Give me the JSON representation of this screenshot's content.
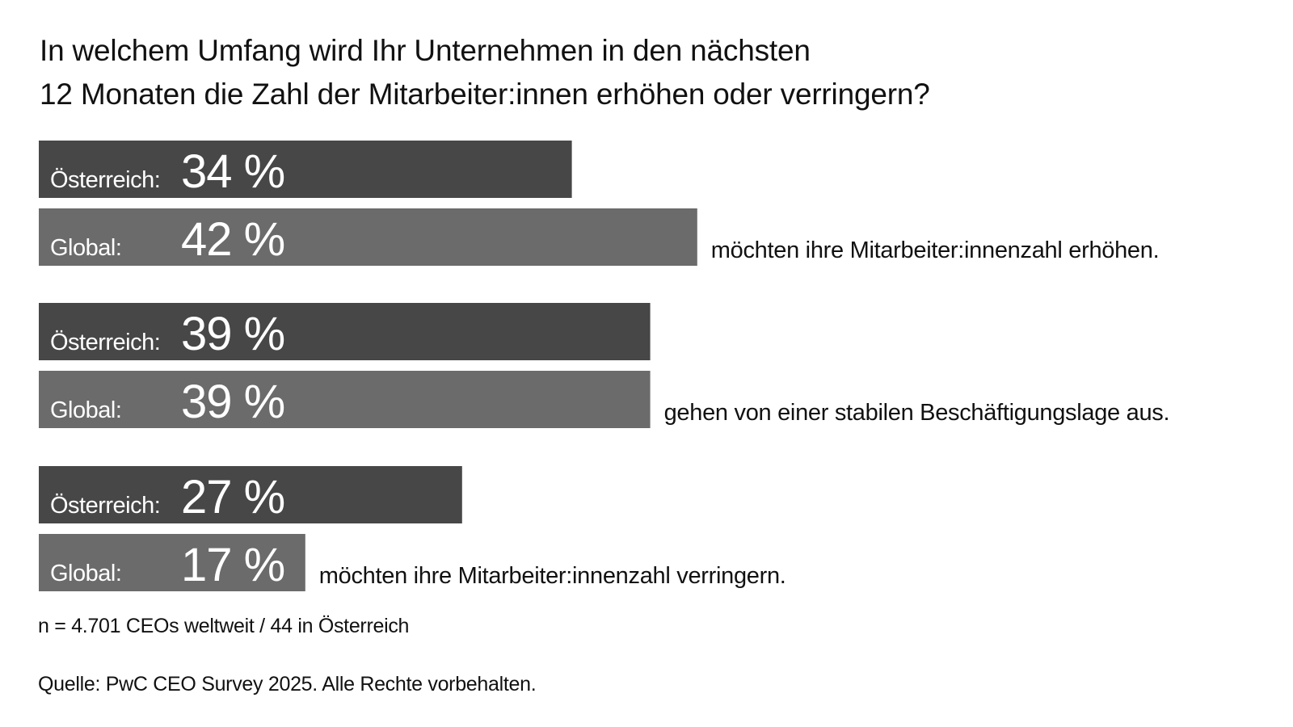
{
  "chart_data": {
    "type": "bar",
    "title": "In welchem Umfang wird Ihr Unternehmen in den nächsten 12 Monaten die Zahl der Mitarbeiter:innen erhöhen oder verringern?",
    "title_lines": [
      "In welchem Umfang wird Ihr Unternehmen in den nächsten",
      "12 Monaten die Zahl der Mitarbeiter:innen erhöhen oder verringern?"
    ],
    "unit": "%",
    "series_names": [
      "Österreich:",
      "Global:"
    ],
    "colors": {
      "Österreich:": "#474747",
      "Global:": "#6b6b6b",
      "bar_text": "#ffffff",
      "text": "#111111"
    },
    "groups": [
      {
        "category": "möchten ihre Mitarbeiter:innenzahl erhöhen.",
        "values": [
          34,
          42
        ],
        "value_labels": [
          "34 %",
          "42 %"
        ]
      },
      {
        "category": "gehen von einer stabilen Beschäftigungslage aus.",
        "values": [
          39,
          39
        ],
        "value_labels": [
          "39 %",
          "39 %"
        ]
      },
      {
        "category": "möchten ihre Mitarbeiter:innenzahl verringern.",
        "values": [
          27,
          17
        ],
        "value_labels": [
          "27 %",
          "17 %"
        ]
      }
    ],
    "xlim": [
      0,
      100
    ],
    "grid": false,
    "legend": "none"
  },
  "notes": {
    "sample": "n = 4.701 CEOs weltweit / 44 in Österreich",
    "source": "Quelle: PwC CEO Survey 2025. Alle Rechte vorbehalten."
  }
}
